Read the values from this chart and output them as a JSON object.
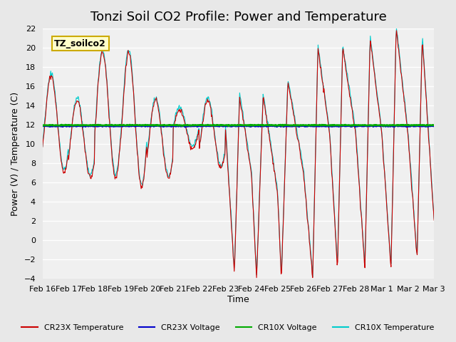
{
  "title": "Tonzi Soil CO2 Profile: Power and Temperature",
  "ylabel": "Power (V) / Temperature (C)",
  "xlabel": "Time",
  "ylim": [
    -4,
    22
  ],
  "yticks": [
    -4,
    -2,
    0,
    2,
    4,
    6,
    8,
    10,
    12,
    14,
    16,
    18,
    20,
    22
  ],
  "xtick_labels": [
    "Feb 16",
    "Feb 17",
    "Feb 18",
    "Feb 19",
    "Feb 20",
    "Feb 21",
    "Feb 22",
    "Feb 23",
    "Feb 24",
    "Feb 25",
    "Feb 26",
    "Feb 27",
    "Feb 28",
    "Mar 1",
    "Mar 2",
    "Mar 3"
  ],
  "annotation_text": "TZ_soilco2",
  "annotation_bg": "#ffffcc",
  "annotation_border": "#ccaa00",
  "cr23x_temp_color": "#cc0000",
  "cr23x_volt_color": "#0000cc",
  "cr10x_volt_color": "#00aa00",
  "cr10x_temp_color": "#00cccc",
  "background_color": "#e8e8e8",
  "plot_bg_color": "#f0f0f0",
  "title_fontsize": 13,
  "legend_labels": [
    "CR23X Temperature",
    "CR23X Voltage",
    "CR10X Voltage",
    "CR10X Temperature"
  ],
  "legend_colors": [
    "#cc0000",
    "#0000cc",
    "#00aa00",
    "#00cccc"
  ]
}
